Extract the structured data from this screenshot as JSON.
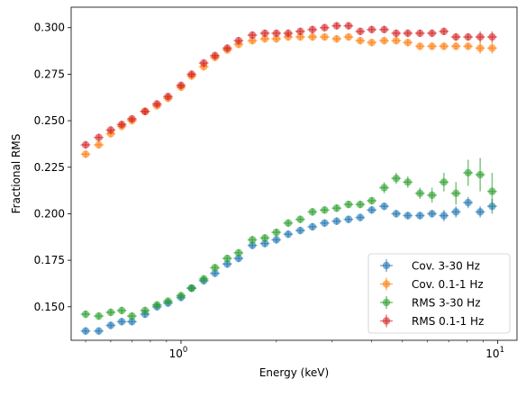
{
  "chart_data": {
    "type": "scatter",
    "title": "",
    "xlabel": "Energy (keV)",
    "ylabel": "Fractional RMS",
    "xscale": "log",
    "xlim": [
      0.45,
      11.5
    ],
    "ylim": [
      0.132,
      0.311
    ],
    "x_ticks": [
      {
        "value": 1,
        "base": "10",
        "exp": "0"
      },
      {
        "value": 10,
        "base": "10",
        "exp": "1"
      }
    ],
    "y_ticks": [
      {
        "value": 0.15,
        "label": "0.150"
      },
      {
        "value": 0.175,
        "label": "0.175"
      },
      {
        "value": 0.2,
        "label": "0.200"
      },
      {
        "value": 0.225,
        "label": "0.225"
      },
      {
        "value": 0.25,
        "label": "0.250"
      },
      {
        "value": 0.275,
        "label": "0.275"
      },
      {
        "value": 0.3,
        "label": "0.300"
      }
    ],
    "grid": false,
    "legend_position": "lower-right",
    "x": [
      0.5,
      0.55,
      0.6,
      0.65,
      0.7,
      0.77,
      0.84,
      0.91,
      1.0,
      1.08,
      1.18,
      1.28,
      1.4,
      1.52,
      1.68,
      1.84,
      2.0,
      2.18,
      2.38,
      2.6,
      2.84,
      3.1,
      3.38,
      3.68,
      4.0,
      4.38,
      4.78,
      5.2,
      5.68,
      6.2,
      6.76,
      7.38,
      8.06,
      8.8,
      9.6
    ],
    "series": [
      {
        "name": "Cov. 3-30 Hz",
        "color": "#1f77b4",
        "y": [
          0.137,
          0.137,
          0.14,
          0.142,
          0.142,
          0.146,
          0.15,
          0.152,
          0.155,
          0.16,
          0.164,
          0.168,
          0.173,
          0.176,
          0.183,
          0.184,
          0.186,
          0.189,
          0.191,
          0.193,
          0.195,
          0.196,
          0.197,
          0.198,
          0.202,
          0.204,
          0.2,
          0.199,
          0.199,
          0.2,
          0.199,
          0.201,
          0.206,
          0.201,
          0.204
        ],
        "yerr": [
          0.002,
          0.002,
          0.002,
          0.002,
          0.002,
          0.002,
          0.002,
          0.002,
          0.002,
          0.002,
          0.002,
          0.002,
          0.002,
          0.002,
          0.002,
          0.002,
          0.002,
          0.002,
          0.002,
          0.002,
          0.002,
          0.002,
          0.002,
          0.002,
          0.002,
          0.002,
          0.002,
          0.002,
          0.002,
          0.002,
          0.003,
          0.003,
          0.003,
          0.003,
          0.004
        ]
      },
      {
        "name": "Cov. 0.1-1 Hz",
        "color": "#ff7f0e",
        "y": [
          0.232,
          0.237,
          0.243,
          0.247,
          0.25,
          0.255,
          0.258,
          0.262,
          0.268,
          0.274,
          0.279,
          0.284,
          0.288,
          0.291,
          0.293,
          0.294,
          0.294,
          0.295,
          0.295,
          0.295,
          0.295,
          0.294,
          0.295,
          0.293,
          0.292,
          0.293,
          0.293,
          0.292,
          0.29,
          0.29,
          0.29,
          0.29,
          0.29,
          0.289,
          0.289
        ],
        "yerr": [
          0.002,
          0.002,
          0.002,
          0.002,
          0.002,
          0.002,
          0.002,
          0.002,
          0.002,
          0.002,
          0.002,
          0.002,
          0.002,
          0.002,
          0.002,
          0.002,
          0.002,
          0.002,
          0.002,
          0.002,
          0.002,
          0.002,
          0.002,
          0.002,
          0.002,
          0.002,
          0.002,
          0.002,
          0.002,
          0.002,
          0.002,
          0.002,
          0.002,
          0.003,
          0.003
        ]
      },
      {
        "name": "RMS 3-30 Hz",
        "color": "#2ca02c",
        "y": [
          0.146,
          0.145,
          0.147,
          0.148,
          0.145,
          0.148,
          0.151,
          0.153,
          0.156,
          0.16,
          0.165,
          0.171,
          0.176,
          0.179,
          0.186,
          0.187,
          0.19,
          0.195,
          0.197,
          0.201,
          0.202,
          0.203,
          0.205,
          0.205,
          0.207,
          0.214,
          0.219,
          0.217,
          0.211,
          0.21,
          0.217,
          0.211,
          0.222,
          0.221,
          0.212
        ],
        "yerr": [
          0.002,
          0.002,
          0.002,
          0.002,
          0.002,
          0.002,
          0.002,
          0.002,
          0.002,
          0.002,
          0.002,
          0.002,
          0.002,
          0.002,
          0.002,
          0.002,
          0.002,
          0.002,
          0.002,
          0.002,
          0.002,
          0.002,
          0.002,
          0.002,
          0.002,
          0.003,
          0.003,
          0.003,
          0.003,
          0.004,
          0.005,
          0.006,
          0.007,
          0.009,
          0.01
        ]
      },
      {
        "name": "RMS 0.1-1 Hz",
        "color": "#d62728",
        "y": [
          0.237,
          0.241,
          0.245,
          0.248,
          0.251,
          0.255,
          0.259,
          0.263,
          0.269,
          0.275,
          0.281,
          0.285,
          0.289,
          0.293,
          0.296,
          0.297,
          0.297,
          0.297,
          0.298,
          0.299,
          0.3,
          0.301,
          0.301,
          0.298,
          0.299,
          0.299,
          0.297,
          0.297,
          0.297,
          0.297,
          0.298,
          0.295,
          0.295,
          0.295,
          0.295
        ],
        "yerr": [
          0.002,
          0.002,
          0.002,
          0.002,
          0.002,
          0.002,
          0.002,
          0.002,
          0.002,
          0.002,
          0.002,
          0.002,
          0.002,
          0.002,
          0.002,
          0.002,
          0.002,
          0.002,
          0.002,
          0.002,
          0.002,
          0.002,
          0.002,
          0.002,
          0.002,
          0.002,
          0.002,
          0.002,
          0.002,
          0.002,
          0.002,
          0.002,
          0.002,
          0.003,
          0.003
        ]
      }
    ]
  }
}
